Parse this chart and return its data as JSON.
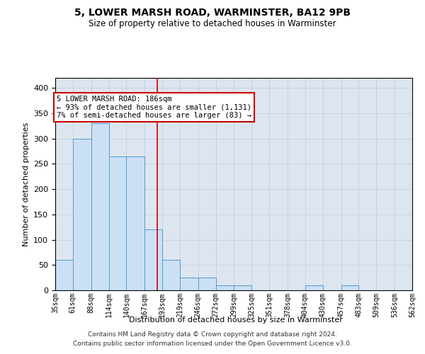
{
  "title": "5, LOWER MARSH ROAD, WARMINSTER, BA12 9PB",
  "subtitle": "Size of property relative to detached houses in Warminster",
  "xlabel": "Distribution of detached houses by size in Warminster",
  "ylabel": "Number of detached properties",
  "bar_color": "#cce0f5",
  "bar_edge_color": "#5599cc",
  "grid_color": "#c0c8d8",
  "bg_color": "#dde6f0",
  "vline_color": "#cc0000",
  "vline_x": 186,
  "bin_edges": [
    35,
    61,
    88,
    114,
    140,
    167,
    193,
    219,
    246,
    272,
    299,
    325,
    351,
    378,
    404,
    430,
    457,
    483,
    509,
    536,
    562
  ],
  "bar_heights": [
    60,
    300,
    330,
    265,
    265,
    120,
    60,
    25,
    25,
    10,
    10,
    0,
    0,
    0,
    10,
    0,
    10,
    0,
    0,
    0
  ],
  "annotation_text": "5 LOWER MARSH ROAD: 186sqm\n← 93% of detached houses are smaller (1,131)\n7% of semi-detached houses are larger (83) →",
  "annotation_box_color": "#ffffff",
  "annotation_box_edge": "#cc0000",
  "ylim": [
    0,
    420
  ],
  "yticks": [
    0,
    50,
    100,
    150,
    200,
    250,
    300,
    350,
    400
  ],
  "footer_line1": "Contains HM Land Registry data © Crown copyright and database right 2024.",
  "footer_line2": "Contains public sector information licensed under the Open Government Licence v3.0."
}
